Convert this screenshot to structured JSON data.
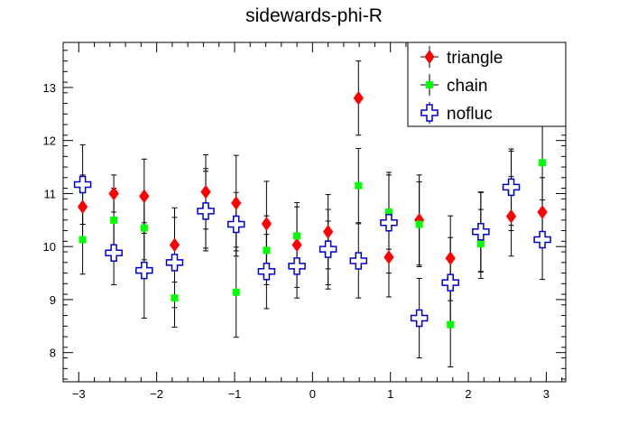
{
  "chart_data": {
    "type": "scatter",
    "title": "sidewards-phi-R",
    "xlabel": "",
    "ylabel": "",
    "xlim": [
      -3.2,
      3.25
    ],
    "ylim": [
      7.45,
      13.85
    ],
    "xticks": [
      -3,
      -2,
      -1,
      0,
      1,
      2,
      3
    ],
    "xtick_labels": [
      "−3",
      "−2",
      "−1",
      "0",
      "1",
      "2",
      "3"
    ],
    "yticks": [
      8,
      9,
      10,
      11,
      12,
      13
    ],
    "ytick_labels": [
      "8",
      "9",
      "10",
      "11",
      "12",
      "13"
    ],
    "grid": false,
    "legend_position": "top-right",
    "x": [
      -2.95,
      -2.55,
      -2.16,
      -1.77,
      -1.37,
      -0.98,
      -0.59,
      -0.2,
      0.2,
      0.59,
      0.98,
      1.37,
      1.77,
      2.16,
      2.55,
      2.95
    ],
    "series": [
      {
        "name": "triangle",
        "color": "#ff0000",
        "marker": "diamond",
        "values": [
          10.75,
          11.0,
          10.95,
          10.03,
          11.03,
          10.82,
          10.43,
          10.03,
          10.28,
          12.8,
          9.8,
          10.5,
          9.78,
          10.27,
          10.57,
          10.65
        ],
        "errors": [
          0.6,
          0.35,
          0.7,
          0.7,
          0.7,
          0.9,
          0.8,
          0.8,
          0.7,
          0.7,
          0.75,
          0.85,
          0.8,
          0.75,
          0.75,
          0.65
        ]
      },
      {
        "name": "chain",
        "color": "#00ff00",
        "marker": "square",
        "values": [
          10.13,
          10.5,
          10.35,
          9.03,
          10.72,
          9.14,
          9.93,
          10.2,
          9.88,
          11.15,
          10.65,
          10.42,
          8.53,
          10.05,
          11.05,
          11.58
        ],
        "errors": [
          0.65,
          0.6,
          0.6,
          0.55,
          0.75,
          0.85,
          0.65,
          0.55,
          0.6,
          0.7,
          0.7,
          0.8,
          0.8,
          0.65,
          0.75,
          0.7
        ]
      },
      {
        "name": "nofluc",
        "color": "#0000cc",
        "marker": "open-cross",
        "values": [
          11.17,
          9.88,
          9.55,
          9.7,
          10.67,
          10.42,
          9.53,
          9.63,
          9.95,
          9.73,
          10.45,
          8.65,
          9.32,
          10.28,
          11.12,
          10.13
        ],
        "errors": [
          0.75,
          0.6,
          0.9,
          0.85,
          0.75,
          0.6,
          0.7,
          0.6,
          0.75,
          0.7,
          0.95,
          0.75,
          0.85,
          0.75,
          0.72,
          0.75
        ]
      }
    ]
  }
}
